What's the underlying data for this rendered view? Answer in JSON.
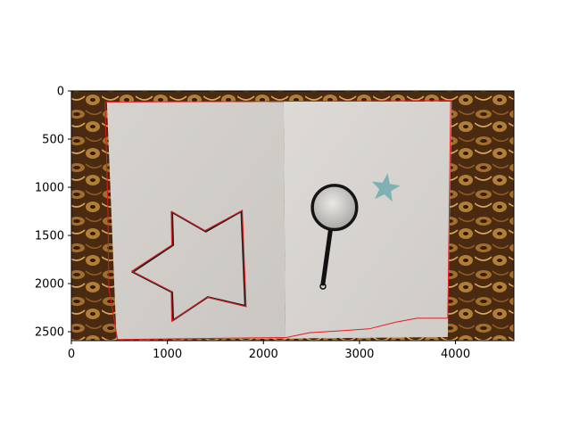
{
  "chart_data": {
    "type": "image",
    "title": "",
    "xlabel": "",
    "ylabel": "",
    "xlim": [
      0,
      4608
    ],
    "ylim": [
      2592,
      0
    ],
    "grid": false,
    "x_ticks": [
      0,
      1000,
      2000,
      3000,
      4000
    ],
    "y_ticks": [
      0,
      500,
      1000,
      1500,
      2000,
      2500
    ],
    "x_tick_labels": [
      "0",
      "1000",
      "2000",
      "3000",
      "4000"
    ],
    "y_tick_labels": [
      "0",
      "500",
      "1000",
      "1500",
      "2000",
      "2500"
    ],
    "image_content": {
      "background": "patterned carpet (brown/gold)",
      "paper_sheets": [
        {
          "name": "left-sheet",
          "polygon": [
            [
              370,
              115
            ],
            [
              2210,
              115
            ],
            [
              2230,
              2570
            ],
            [
              470,
              2580
            ]
          ]
        },
        {
          "name": "right-sheet",
          "polygon": [
            [
              2210,
              110
            ],
            [
              3960,
              110
            ],
            [
              3920,
              2555
            ],
            [
              2230,
              2570
            ]
          ]
        }
      ],
      "hand_drawn_star": [
        [
          1050,
          1260
        ],
        [
          1060,
          1600
        ],
        [
          640,
          1880
        ],
        [
          1050,
          2090
        ],
        [
          1060,
          2380
        ],
        [
          1420,
          2140
        ],
        [
          1810,
          2230
        ],
        [
          1770,
          1250
        ],
        [
          1400,
          1460
        ]
      ],
      "magnifier": {
        "lens_center": [
          2740,
          1210
        ],
        "lens_radius": 230,
        "handle": [
          [
            2700,
            1430
          ],
          [
            2620,
            2000
          ]
        ]
      },
      "small_star_center": [
        3270,
        1010
      ],
      "small_star_color": "#7fb1b3"
    },
    "detected_contours": {
      "color": "#e8191e",
      "paper_outline": [
        [
          350,
          115
        ],
        [
          3950,
          100
        ],
        [
          3920,
          2360
        ],
        [
          3600,
          2360
        ],
        [
          3380,
          2400
        ],
        [
          3100,
          2470
        ],
        [
          2800,
          2490
        ],
        [
          2480,
          2510
        ],
        [
          2240,
          2560
        ],
        [
          480,
          2580
        ],
        [
          390,
          2050
        ],
        [
          380,
          1200
        ],
        [
          350,
          115
        ]
      ],
      "star_outline": [
        [
          1040,
          1250
        ],
        [
          1045,
          1600
        ],
        [
          630,
          1870
        ],
        [
          1040,
          2080
        ],
        [
          1045,
          2390
        ],
        [
          1410,
          2140
        ],
        [
          1820,
          2240
        ],
        [
          1780,
          1240
        ],
        [
          1390,
          1450
        ],
        [
          1040,
          1250
        ]
      ]
    }
  }
}
